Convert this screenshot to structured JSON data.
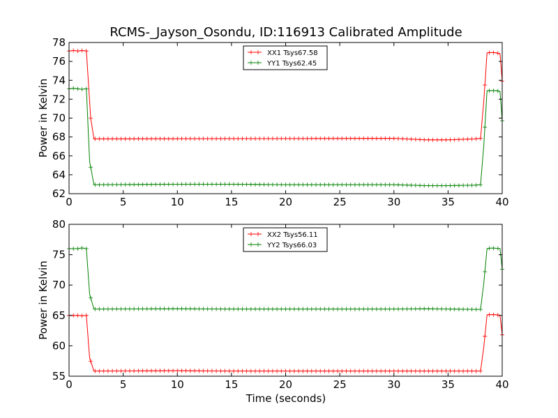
{
  "title": "RCMS-_Jayson_Osondu, ID:116913 Calibrated Amplitude",
  "xlabel": "Time (seconds)",
  "chart_data": [
    {
      "type": "line",
      "ylabel": "Power in Kelvin",
      "xlim": [
        0,
        40
      ],
      "ylim": [
        62,
        78
      ],
      "xticks": [
        0,
        5,
        10,
        15,
        20,
        25,
        30,
        35,
        40
      ],
      "yticks": [
        62,
        64,
        66,
        68,
        70,
        72,
        74,
        76,
        78
      ],
      "legend_location": "top-center",
      "series": [
        {
          "name": "XX1 Tsys67.58",
          "color": "#ff0000",
          "points": [
            [
              0.0,
              77.1
            ],
            [
              0.4,
              77.15
            ],
            [
              0.8,
              77.1
            ],
            [
              1.2,
              77.15
            ],
            [
              1.6,
              77.1
            ],
            [
              2.0,
              70.0
            ],
            [
              2.3,
              67.8
            ],
            [
              2.5,
              67.8
            ],
            [
              30.0,
              67.85
            ],
            [
              33.0,
              67.7
            ],
            [
              35.0,
              67.7
            ],
            [
              37.5,
              67.8
            ],
            [
              38.0,
              67.85
            ],
            [
              38.3,
              71.8
            ],
            [
              38.6,
              76.9
            ],
            [
              39.0,
              76.95
            ],
            [
              39.5,
              76.9
            ],
            [
              39.8,
              76.8
            ],
            [
              40.0,
              73.9
            ]
          ]
        },
        {
          "name": "YY1 Tsys62.45",
          "color": "#008000",
          "points": [
            [
              0.0,
              73.1
            ],
            [
              0.4,
              73.15
            ],
            [
              0.8,
              73.1
            ],
            [
              1.2,
              73.05
            ],
            [
              1.6,
              73.1
            ],
            [
              1.9,
              65.4
            ],
            [
              2.3,
              62.95
            ],
            [
              2.5,
              62.95
            ],
            [
              10.0,
              63.0
            ],
            [
              15.0,
              63.0
            ],
            [
              20.0,
              62.95
            ],
            [
              25.0,
              62.95
            ],
            [
              30.0,
              62.95
            ],
            [
              33.0,
              62.85
            ],
            [
              35.0,
              62.85
            ],
            [
              37.5,
              62.9
            ],
            [
              38.0,
              62.95
            ],
            [
              38.3,
              67.1
            ],
            [
              38.6,
              72.9
            ],
            [
              39.0,
              72.9
            ],
            [
              39.5,
              72.9
            ],
            [
              39.8,
              72.8
            ],
            [
              40.0,
              69.7
            ]
          ]
        }
      ]
    },
    {
      "type": "line",
      "ylabel": "Power in Kelvin",
      "xlim": [
        0,
        40
      ],
      "ylim": [
        55,
        80
      ],
      "xticks": [
        0,
        5,
        10,
        15,
        20,
        25,
        30,
        35,
        40
      ],
      "yticks": [
        55,
        60,
        65,
        70,
        75,
        80
      ],
      "legend_location": "top-center",
      "series": [
        {
          "name": "XX2 Tsys56.11",
          "color": "#ff0000",
          "points": [
            [
              0.0,
              65.0
            ],
            [
              0.4,
              65.0
            ],
            [
              0.8,
              65.0
            ],
            [
              1.2,
              64.95
            ],
            [
              1.6,
              65.0
            ],
            [
              1.9,
              58.0
            ],
            [
              2.3,
              55.85
            ],
            [
              2.5,
              55.85
            ],
            [
              10.0,
              55.9
            ],
            [
              15.0,
              55.85
            ],
            [
              20.0,
              55.85
            ],
            [
              25.0,
              55.85
            ],
            [
              30.0,
              55.85
            ],
            [
              35.0,
              55.85
            ],
            [
              37.5,
              55.85
            ],
            [
              38.0,
              55.85
            ],
            [
              38.3,
              59.8
            ],
            [
              38.6,
              65.1
            ],
            [
              39.0,
              65.15
            ],
            [
              39.5,
              65.1
            ],
            [
              39.8,
              65.0
            ],
            [
              40.0,
              61.8
            ]
          ]
        },
        {
          "name": "YY2 Tsys66.03",
          "color": "#008000",
          "points": [
            [
              0.0,
              76.0
            ],
            [
              0.4,
              76.0
            ],
            [
              0.8,
              76.0
            ],
            [
              1.2,
              76.1
            ],
            [
              1.6,
              76.0
            ],
            [
              1.9,
              68.5
            ],
            [
              2.3,
              66.05
            ],
            [
              2.5,
              66.05
            ],
            [
              10.0,
              66.1
            ],
            [
              15.0,
              66.05
            ],
            [
              20.0,
              66.05
            ],
            [
              25.0,
              66.05
            ],
            [
              30.0,
              66.05
            ],
            [
              33.0,
              66.1
            ],
            [
              35.0,
              66.05
            ],
            [
              37.5,
              66.0
            ],
            [
              38.0,
              66.0
            ],
            [
              38.3,
              70.3
            ],
            [
              38.6,
              76.0
            ],
            [
              39.0,
              76.1
            ],
            [
              39.5,
              76.05
            ],
            [
              39.8,
              76.0
            ],
            [
              40.0,
              72.6
            ]
          ]
        }
      ]
    }
  ]
}
